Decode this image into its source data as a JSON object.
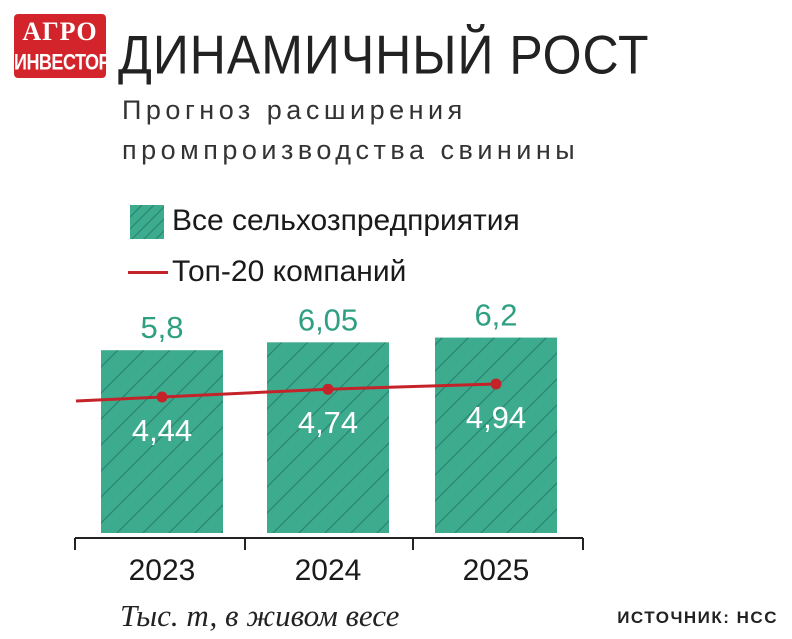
{
  "logo": {
    "line1": "АГРО",
    "line2": "ИНВЕСТОР"
  },
  "header": {
    "title": "ДИНАМИЧНЫЙ РОСТ",
    "subtitle": "Прогноз расширения промпроизводства свинины"
  },
  "colors": {
    "bar": "#3dac8e",
    "bar_hatch": "#2a8670",
    "line": "#c4232a",
    "value_top": "#2e9f80",
    "value_inside": "#ffffff"
  },
  "footnote": "Тыс. т, в живом весе",
  "source": "ИСТОЧНИК: НСС",
  "chart_data": {
    "type": "bar",
    "categories": [
      "2023",
      "2024",
      "2025"
    ],
    "series": [
      {
        "name": "Все сельхозпредприятия",
        "type": "bar",
        "values": [
          5.8,
          6.05,
          6.2
        ],
        "labels": [
          "5,8",
          "6,05",
          "6,2"
        ]
      },
      {
        "name": "Топ-20 компаний",
        "type": "line",
        "values": [
          4.44,
          4.74,
          4.94
        ],
        "labels": [
          "4,44",
          "4,74",
          "4,94"
        ]
      }
    ],
    "legend": "top-left",
    "grid": false
  }
}
